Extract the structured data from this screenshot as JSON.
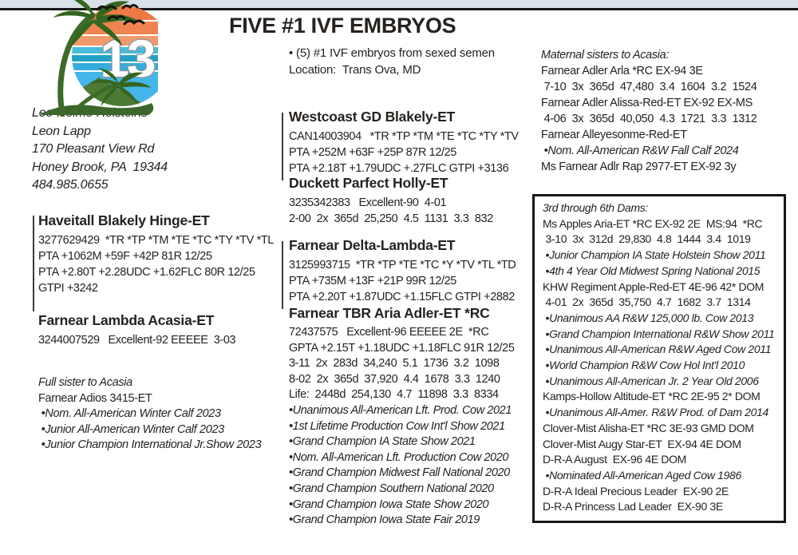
{
  "page": {
    "lot_number": "13",
    "title": "FIVE #1 IVF EMBRYOS",
    "intro_bullet": "• (5) #1 IVF embryos from sexed semen",
    "location_line": "Location:  Trans Ova, MD"
  },
  "logo_colors": {
    "orange": "#ed7943",
    "blue": "#45b5ea",
    "green": "#3c672a"
  },
  "seller": {
    "lines": [
      "Leo-Holme Holsteins",
      "Leon Lapp",
      "170 Pleasant View Rd",
      "Honey Brook, PA  19344",
      "484.985.0655"
    ]
  },
  "dams": {
    "hinge": {
      "name": "Haveitall Blakely Hinge-ET",
      "lines": [
        {
          "t": "3277629429  *TR *TP *TM *TE *TC *TY *TV *TL"
        },
        {
          "t": "PTA +1062M +59F +42P 81R 12/25"
        },
        {
          "t": "PTA +2.80T +2.28UDC +1.62FLC 80R 12/25"
        },
        {
          "t": "GTPI +3242"
        }
      ]
    },
    "acasia": {
      "name": "Farnear Lambda Acasia-ET",
      "lines": [
        {
          "t": "3244007529   Excellent-92 EEEEE  3-03"
        }
      ]
    }
  },
  "full_sister": {
    "lines": [
      {
        "t": "Full sister to Acasia",
        "s": "i"
      },
      {
        "t": "Farnear Adios 3415-ET"
      },
      {
        "t": " •Nom. All-American Winter Calf 2023",
        "s": "i"
      },
      {
        "t": " •Junior All-American Winter Calf 2023",
        "s": "i"
      },
      {
        "t": " •Junior Champion International Jr.Show 2023",
        "s": "i"
      }
    ]
  },
  "sires": {
    "westcoast": {
      "name": "Westcoast GD Blakely-ET",
      "lines": [
        {
          "t": "CAN14003904   *TR *TP *TM *TE *TC *TY *TV"
        },
        {
          "t": "PTA +252M +63F +25P 87R 12/25"
        },
        {
          "t": "PTA +2.18T +1.79UDC +.27FLC GTPI +3136"
        }
      ]
    },
    "duckett": {
      "name": "Duckett Parfect Holly-ET",
      "lines": [
        {
          "t": "3235342383   Excellent-90  4-01"
        },
        {
          "t": "2-00  2x  365d  25,250  4.5  1131  3.3  832"
        }
      ]
    },
    "delta_lambda": {
      "name": "Farnear Delta-Lambda-ET",
      "lines": [
        {
          "t": "3125993715  *TR *TP *TE *TC *Y *TV *TL *TD"
        },
        {
          "t": "PTA +735M +13F +21P 99R 12/25"
        },
        {
          "t": "PTA +2.20T +1.87UDC +1.15FLC GTPI +2882"
        }
      ]
    },
    "aria_adler": {
      "name": "Farnear TBR Aria Adler-ET *RC",
      "lines": [
        {
          "t": "72437575   Excellent-96 EEEEE 2E  *RC"
        },
        {
          "t": "GPTA +2.15T +1.18UDC +1.18FLC 91R 12/25"
        },
        {
          "t": "3-11  2x  283d  34,240  5.1  1736  3.2  1098"
        },
        {
          "t": "8-02  2x  365d  37,920  4.4  1678  3.3  1240"
        },
        {
          "t": "Life:  2448d  254,130  4.7  11898  3.3  8334"
        },
        {
          "t": "•Unanimous All-American Lft. Prod. Cow 2021",
          "s": "i"
        },
        {
          "t": "•1st Lifetime Production Cow Int'l Show 2021",
          "s": "i"
        },
        {
          "t": "•Grand Champion IA State Show 2021",
          "s": "i"
        },
        {
          "t": "•Nom. All-American Lft. Production Cow 2020",
          "s": "i"
        },
        {
          "t": "•Grand Champion Midwest Fall National 2020",
          "s": "i"
        },
        {
          "t": "•Grand Champion Southern National 2020",
          "s": "i"
        },
        {
          "t": "•Grand Champion Iowa State Show 2020",
          "s": "i"
        },
        {
          "t": "•Grand Champion Iowa State Fair 2019",
          "s": "i"
        }
      ]
    }
  },
  "maternal_sisters": {
    "lines": [
      {
        "t": "Maternal sisters to Acasia:",
        "s": "i"
      },
      {
        "t": "Farnear Adler Arla *RC EX-94 3E"
      },
      {
        "t": " 7-10  3x  365d  47,480  3.4  1604  3.2  1524"
      },
      {
        "t": "Farnear Adler Alissa-Red-ET EX-92 EX-MS"
      },
      {
        "t": " 4-06  3x  365d  40,050  4.3  1721  3.3  1312"
      },
      {
        "t": "Farnear Alleyesonme-Red-ET"
      },
      {
        "t": " •Nom. All-American R&W Fall Calf 2024",
        "s": "i"
      },
      {
        "t": "Ms Farnear Adlr Rap 2977-ET EX-92 3y"
      }
    ]
  },
  "dams_box": {
    "lines": [
      {
        "t": "3rd through 6th Dams:",
        "s": "i"
      },
      {
        "t": "Ms Apples Aria-ET *RC EX-92 2E  MS:94  *RC"
      },
      {
        "t": " 3-10  3x  312d  29,830  4.8  1444  3.4  1019"
      },
      {
        "t": " •Junior Champion IA State Holstein Show 2011",
        "s": "i"
      },
      {
        "t": " •4th 4 Year Old Midwest Spring National 2015",
        "s": "i"
      },
      {
        "t": "KHW Regiment Apple-Red-ET 4E-96 42* DOM"
      },
      {
        "t": " 4-01  2x  365d  35,750  4.7  1682  3.7  1314"
      },
      {
        "t": " •Unanimous AA R&W 125,000 lb. Cow 2013",
        "s": "i"
      },
      {
        "t": " •Grand Champion International R&W Show 2011",
        "s": "i"
      },
      {
        "t": " •Unanimous All-American R&W Aged Cow 2011",
        "s": "i"
      },
      {
        "t": " •World Champion R&W Cow Hol Int'l 2010",
        "s": "i"
      },
      {
        "t": " •Unanimous All-American Jr. 2 Year Old 2006",
        "s": "i"
      },
      {
        "t": "Kamps-Hollow Altitude-ET *RC 2E-95 2* DOM"
      },
      {
        "t": " •Unanimous All-Amer. R&W Prod. of Dam 2014",
        "s": "i"
      },
      {
        "t": "Clover-Mist Alisha-ET *RC 3E-93 GMD DOM"
      },
      {
        "t": "Clover-Mist Augy Star-ET  EX-94 4E DOM"
      },
      {
        "t": "D-R-A August  EX-96 4E DOM"
      },
      {
        "t": " •Nominated All-American Aged Cow 1986",
        "s": "i"
      },
      {
        "t": "D-R-A Ideal Precious Leader  EX-90 2E"
      },
      {
        "t": "D-R-A Princess Lad Leader  EX-90 3E"
      }
    ]
  }
}
